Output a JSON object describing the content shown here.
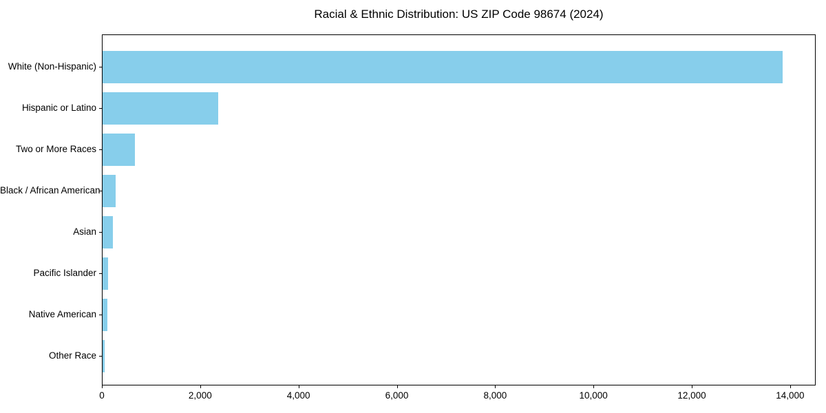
{
  "chart_data": {
    "type": "bar",
    "orientation": "horizontal",
    "title": "Racial & Ethnic Distribution: US ZIP Code 98674 (2024)",
    "categories": [
      "White (Non-Hispanic)",
      "Hispanic or Latino",
      "Two or More Races",
      "Black / African American",
      "Asian",
      "Pacific Islander",
      "Native American",
      "Other Race"
    ],
    "values": [
      13830,
      2350,
      660,
      260,
      210,
      110,
      100,
      40
    ],
    "xlabel": "",
    "ylabel": "",
    "xlim": [
      0,
      14520
    ],
    "x_ticks": [
      0,
      2000,
      4000,
      6000,
      8000,
      10000,
      12000,
      14000
    ],
    "x_tick_labels": [
      "0",
      "2,000",
      "4,000",
      "6,000",
      "8,000",
      "10,000",
      "12,000",
      "14,000"
    ],
    "grid": false,
    "legend": null,
    "bar_color": "#87CEEB",
    "axis_color": "#000000",
    "background_color": "#ffffff"
  }
}
